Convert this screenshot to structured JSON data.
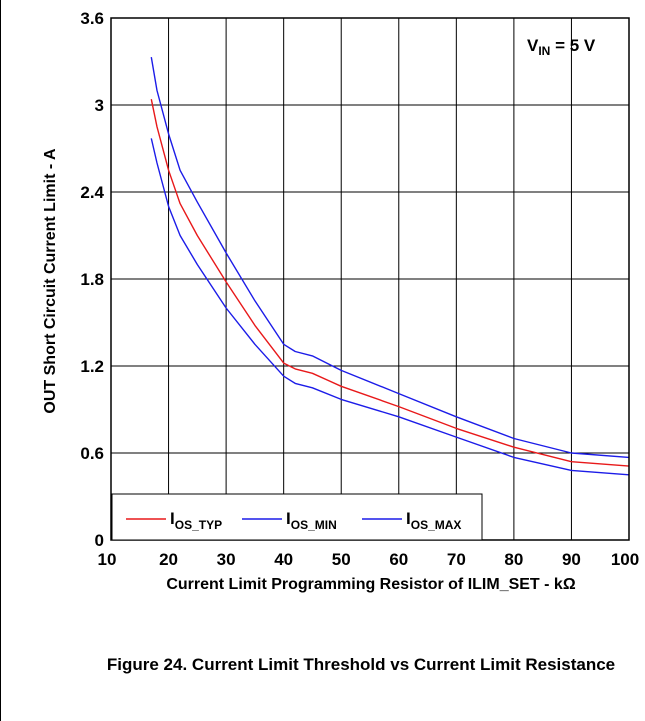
{
  "caption": "Figure 24.  Current Limit Threshold vs Current Limit Resistance",
  "chart_data": {
    "type": "line",
    "xlabel_prefix": "Current Limit Programming Resistor of ILIM_SET - k",
    "xlabel_unit": "Ω",
    "ylabel": "OUT Short Circuit Current Limit - A",
    "xlim": [
      10,
      100
    ],
    "ylim": [
      0,
      3.6
    ],
    "xticks": [
      10,
      20,
      30,
      40,
      50,
      60,
      70,
      80,
      90,
      100
    ],
    "yticks": [
      0,
      0.6,
      1.2,
      1.8,
      2.4,
      3,
      3.6
    ],
    "ytick_labels": [
      "0",
      "0.6",
      "1.2",
      "1.8",
      "2.4",
      "3",
      "3.6"
    ],
    "grid": true,
    "legend_position": "bottom-left",
    "annotation": {
      "main": "V",
      "sub": "IN",
      "rest": " = 5 V"
    },
    "series": [
      {
        "main": "I",
        "sub": "OS_TYP",
        "color": "#e8191a",
        "x": [
          17,
          18,
          20,
          22,
          25,
          30,
          35,
          40,
          42,
          45,
          50,
          60,
          70,
          80,
          90,
          100
        ],
        "y": [
          3.04,
          2.85,
          2.55,
          2.32,
          2.1,
          1.78,
          1.48,
          1.22,
          1.18,
          1.15,
          1.06,
          0.92,
          0.77,
          0.64,
          0.54,
          0.51
        ]
      },
      {
        "main": "I",
        "sub": "OS_MIN",
        "color": "#1c1ce8",
        "x": [
          17,
          18,
          20,
          22,
          25,
          30,
          35,
          40,
          42,
          45,
          50,
          60,
          70,
          80,
          90,
          100
        ],
        "y": [
          2.77,
          2.6,
          2.3,
          2.1,
          1.9,
          1.6,
          1.35,
          1.13,
          1.08,
          1.05,
          0.97,
          0.85,
          0.71,
          0.57,
          0.48,
          0.45
        ]
      },
      {
        "main": "I",
        "sub": "OS_MAX",
        "color": "#1c1ce8",
        "x": [
          17,
          18,
          20,
          22,
          25,
          30,
          35,
          40,
          42,
          45,
          50,
          60,
          70,
          80,
          90,
          100
        ],
        "y": [
          3.33,
          3.1,
          2.8,
          2.55,
          2.33,
          1.98,
          1.65,
          1.35,
          1.3,
          1.27,
          1.17,
          1.01,
          0.85,
          0.7,
          0.6,
          0.57
        ]
      }
    ]
  }
}
